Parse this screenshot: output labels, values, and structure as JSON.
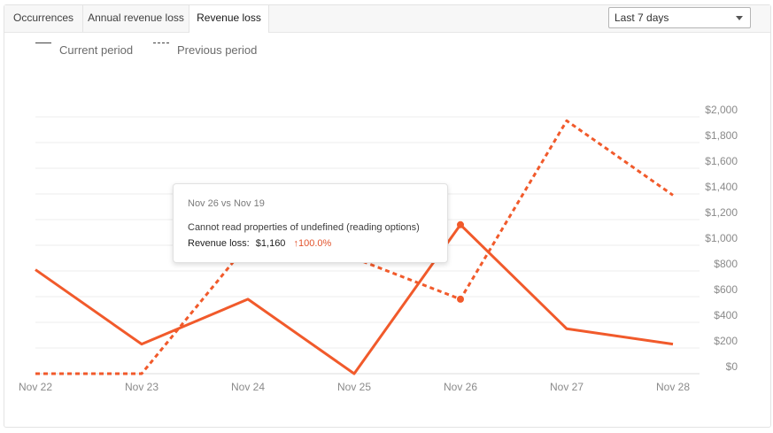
{
  "tabs": [
    {
      "label": "Occurrences",
      "active": false
    },
    {
      "label": "Annual revenue loss",
      "active": false
    },
    {
      "label": "Revenue loss",
      "active": true
    }
  ],
  "period_select": {
    "selected": "Last 7 days"
  },
  "legend": {
    "current_label": "Current period",
    "previous_label": "Previous period"
  },
  "tooltip": {
    "title": "Nov 26 vs Nov 19",
    "message": "Cannot read properties of undefined (reading options)",
    "metric_label": "Revenue loss:",
    "metric_value": "$1,160",
    "change_arrow": "↑",
    "change": "100.0%"
  },
  "colors": {
    "line": "#f15a2b",
    "tooltip_change": "#e2542d"
  },
  "chart_data": {
    "type": "line",
    "x": [
      "Nov 22",
      "Nov 23",
      "Nov 24",
      "Nov 25",
      "Nov 26",
      "Nov 27",
      "Nov 28"
    ],
    "y_ticks": [
      "$0",
      "$200",
      "$400",
      "$600",
      "$800",
      "$1,000",
      "$1,200",
      "$1,400",
      "$1,600",
      "$1,800",
      "$2,000"
    ],
    "ylim": [
      0,
      2000
    ],
    "y_axis_position": "right",
    "grid": true,
    "legend_position": "top-left",
    "series": [
      {
        "name": "Current period",
        "style": "solid",
        "values": [
          810,
          230,
          580,
          0,
          1160,
          350,
          230
        ]
      },
      {
        "name": "Previous period",
        "style": "dashed",
        "values": [
          0,
          0,
          1010,
          900,
          580,
          1970,
          1390
        ]
      }
    ],
    "highlight_index": 4
  }
}
